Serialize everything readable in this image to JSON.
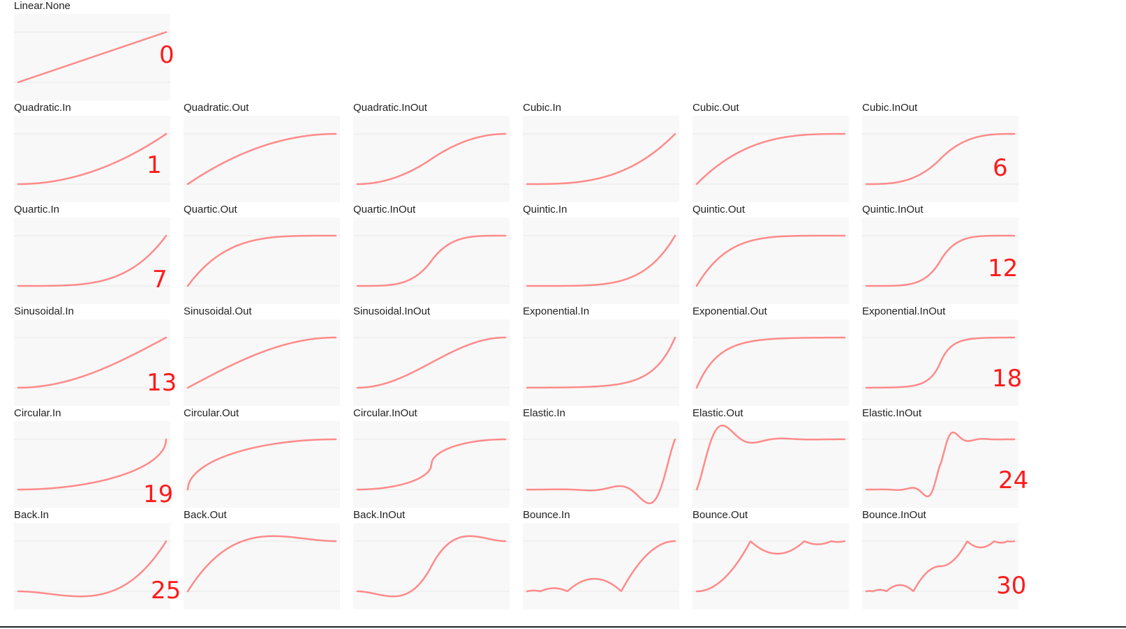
{
  "curve_color": "#ff8a8a",
  "badge_color": "#ff1a1a",
  "cells": [
    {
      "row": 0,
      "col": 0,
      "label": "Linear.None",
      "fn": "linear"
    },
    {
      "row": 1,
      "col": 0,
      "label": "Quadratic.In",
      "fn": "quadIn"
    },
    {
      "row": 1,
      "col": 1,
      "label": "Quadratic.Out",
      "fn": "quadOut"
    },
    {
      "row": 1,
      "col": 2,
      "label": "Quadratic.InOut",
      "fn": "quadInOut"
    },
    {
      "row": 1,
      "col": 3,
      "label": "Cubic.In",
      "fn": "cubicIn"
    },
    {
      "row": 1,
      "col": 4,
      "label": "Cubic.Out",
      "fn": "cubicOut"
    },
    {
      "row": 1,
      "col": 5,
      "label": "Cubic.InOut",
      "fn": "cubicInOut"
    },
    {
      "row": 2,
      "col": 0,
      "label": "Quartic.In",
      "fn": "quartIn"
    },
    {
      "row": 2,
      "col": 1,
      "label": "Quartic.Out",
      "fn": "quartOut"
    },
    {
      "row": 2,
      "col": 2,
      "label": "Quartic.InOut",
      "fn": "quartInOut"
    },
    {
      "row": 2,
      "col": 3,
      "label": "Quintic.In",
      "fn": "quintIn"
    },
    {
      "row": 2,
      "col": 4,
      "label": "Quintic.Out",
      "fn": "quintOut"
    },
    {
      "row": 2,
      "col": 5,
      "label": "Quintic.InOut",
      "fn": "quintInOut"
    },
    {
      "row": 3,
      "col": 0,
      "label": "Sinusoidal.In",
      "fn": "sineIn"
    },
    {
      "row": 3,
      "col": 1,
      "label": "Sinusoidal.Out",
      "fn": "sineOut"
    },
    {
      "row": 3,
      "col": 2,
      "label": "Sinusoidal.InOut",
      "fn": "sineInOut"
    },
    {
      "row": 3,
      "col": 3,
      "label": "Exponential.In",
      "fn": "expoIn"
    },
    {
      "row": 3,
      "col": 4,
      "label": "Exponential.Out",
      "fn": "expoOut"
    },
    {
      "row": 3,
      "col": 5,
      "label": "Exponential.InOut",
      "fn": "expoInOut"
    },
    {
      "row": 4,
      "col": 0,
      "label": "Circular.In",
      "fn": "circIn"
    },
    {
      "row": 4,
      "col": 1,
      "label": "Circular.Out",
      "fn": "circOut"
    },
    {
      "row": 4,
      "col": 2,
      "label": "Circular.InOut",
      "fn": "circInOut"
    },
    {
      "row": 4,
      "col": 3,
      "label": "Elastic.In",
      "fn": "elasticIn"
    },
    {
      "row": 4,
      "col": 4,
      "label": "Elastic.Out",
      "fn": "elasticOut"
    },
    {
      "row": 4,
      "col": 5,
      "label": "Elastic.InOut",
      "fn": "elasticInOut"
    },
    {
      "row": 5,
      "col": 0,
      "label": "Back.In",
      "fn": "backIn"
    },
    {
      "row": 5,
      "col": 1,
      "label": "Back.Out",
      "fn": "backOut"
    },
    {
      "row": 5,
      "col": 2,
      "label": "Back.InOut",
      "fn": "backInOut"
    },
    {
      "row": 5,
      "col": 3,
      "label": "Bounce.In",
      "fn": "bounceIn"
    },
    {
      "row": 5,
      "col": 4,
      "label": "Bounce.Out",
      "fn": "bounceOut"
    },
    {
      "row": 5,
      "col": 5,
      "label": "Bounce.InOut",
      "fn": "bounceInOut"
    }
  ],
  "badges": [
    {
      "text": "0",
      "row": 0
    },
    {
      "text": "1",
      "row": 1
    },
    {
      "text": "6",
      "row": 1
    },
    {
      "text": "7",
      "row": 2
    },
    {
      "text": "12",
      "row": 2
    },
    {
      "text": "13",
      "row": 3
    },
    {
      "text": "18",
      "row": 3
    },
    {
      "text": "19",
      "row": 4
    },
    {
      "text": "24",
      "row": 4
    },
    {
      "text": "25",
      "row": 5
    },
    {
      "text": "30",
      "row": 5
    }
  ]
}
